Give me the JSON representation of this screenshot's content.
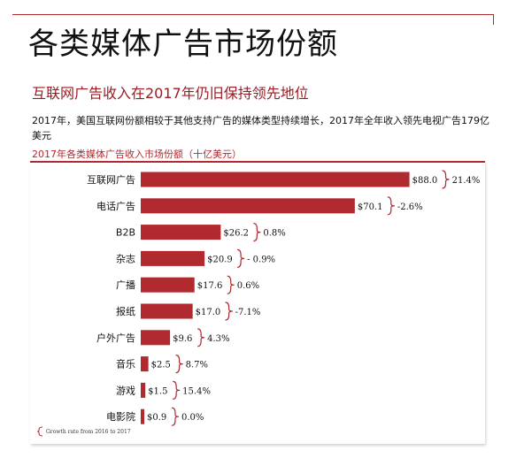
{
  "header": {
    "title": "各类媒体广告市场份额",
    "subtitle": "互联网广告收入在2017年仍旧保持领先地位",
    "description": "2017年，美国互联网份额相较于其他支持广告的媒体类型持续增长，2017年全年收入领先电视广告179亿美元"
  },
  "colors": {
    "bar": "#b02a30",
    "accent": "#9b1c24",
    "bracket": "#b02a30"
  },
  "chart_data": {
    "type": "bar",
    "orientation": "horizontal",
    "title": "2017年各类媒体广告收入市场份额（十亿美元）",
    "categories": [
      "互联网广告",
      "电话广告",
      "B2B",
      "杂志",
      "广播",
      "报纸",
      "户外广告",
      "音乐",
      "游戏",
      "电影院"
    ],
    "values": [
      88.0,
      70.1,
      26.2,
      20.9,
      17.6,
      17.0,
      9.6,
      2.5,
      1.5,
      0.9
    ],
    "value_labels": [
      "$88.0",
      "$70.1",
      "$26.2",
      "$20.9",
      "$17.6",
      "$17.0",
      "$9.6",
      "$2.5",
      "$1.5",
      "$0.9"
    ],
    "growth_labels": [
      "21.4%",
      "-2.6%",
      "0.8%",
      "- 0.9%",
      "0.6%",
      "-7.1%",
      "4.3%",
      "8.7%",
      "15.4%",
      "0.0%"
    ],
    "footnote": "Growth rate from 2016 to 2017",
    "xlim": [
      0,
      88
    ],
    "grid": false,
    "legend": "bottom-left"
  }
}
